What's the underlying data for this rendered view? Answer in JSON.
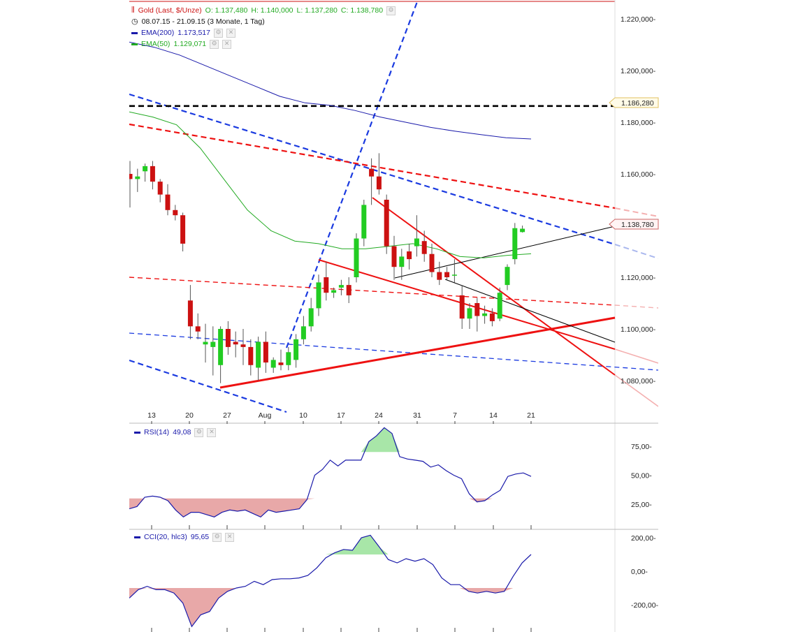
{
  "colors": {
    "up": "#22cc22",
    "down": "#cc1111",
    "ema200": "#1a1aaa",
    "ema50": "#22aa22",
    "trend_red": "#ee1111",
    "trend_blue": "#1a3ae0",
    "black": "#000000",
    "grid_text": "#222222",
    "rsi_line": "#1a1aaa",
    "fill_green": "#a8e6a8",
    "fill_red": "#e8a8a8"
  },
  "header": {
    "instrument": "Gold (Last, $/Unze)",
    "open": "O: 1.137,480",
    "high": "H: 1.140,000",
    "low": "L: 1.137,280",
    "close": "C: 1.138,780",
    "range": "08.07.15 - 21.09.15 (3 Monate, 1 Tag)",
    "ema200_label": "EMA(200)",
    "ema200_value": "1.173,517",
    "ema50_label": "EMA(50)",
    "ema50_value": "1.129,071",
    "icon_candles": "candlestick-icon",
    "icon_clock": "clock-icon"
  },
  "rsi_legend": {
    "label": "RSI(14)",
    "value": "49,08"
  },
  "cci_legend": {
    "label": "CCI(20, hlc3)",
    "value": "95,65"
  },
  "price_markers": {
    "level_black": "1.186,280",
    "last_price": "1.138,780"
  },
  "chart_data": {
    "type": "candlestick",
    "x_tick_labels": [
      "13",
      "20",
      "27",
      "Aug",
      "10",
      "17",
      "24",
      "31",
      "7",
      "14",
      "21"
    ],
    "price_axis": {
      "ylim": [
        1075000,
        1225000
      ],
      "ticks": [
        1220000,
        1200000,
        1180000,
        1160000,
        1120000,
        1100000,
        1080000
      ],
      "tick_labels": [
        "1.220,000-",
        "1.200,000-",
        "1.180,000-",
        "1.160,000-",
        "1.120,000-",
        "1.100,000-",
        "1.080,000-"
      ]
    },
    "candles": [
      {
        "o": 1160000,
        "h": 1165000,
        "l": 1147000,
        "c": 1158000
      },
      {
        "o": 1158000,
        "h": 1162000,
        "l": 1153000,
        "c": 1159000
      },
      {
        "o": 1161000,
        "h": 1164000,
        "l": 1157000,
        "c": 1163000
      },
      {
        "o": 1163000,
        "h": 1165000,
        "l": 1154000,
        "c": 1157000
      },
      {
        "o": 1157000,
        "h": 1158000,
        "l": 1149000,
        "c": 1152000
      },
      {
        "o": 1152000,
        "h": 1156000,
        "l": 1144000,
        "c": 1146000
      },
      {
        "o": 1146000,
        "h": 1148000,
        "l": 1142000,
        "c": 1144000
      },
      {
        "o": 1144000,
        "h": 1145000,
        "l": 1130000,
        "c": 1133000
      },
      {
        "o": 1111000,
        "h": 1117000,
        "l": 1096000,
        "c": 1101000
      },
      {
        "o": 1101000,
        "h": 1106000,
        "l": 1096000,
        "c": 1099000
      },
      {
        "o": 1094000,
        "h": 1102000,
        "l": 1087000,
        "c": 1095000
      },
      {
        "o": 1093000,
        "h": 1101000,
        "l": 1082000,
        "c": 1095000
      },
      {
        "o": 1086000,
        "h": 1101000,
        "l": 1079000,
        "c": 1100000
      },
      {
        "o": 1100000,
        "h": 1103000,
        "l": 1090000,
        "c": 1093000
      },
      {
        "o": 1095000,
        "h": 1099000,
        "l": 1089000,
        "c": 1094000
      },
      {
        "o": 1094000,
        "h": 1100000,
        "l": 1086000,
        "c": 1093000
      },
      {
        "o": 1093000,
        "h": 1096000,
        "l": 1082000,
        "c": 1086000
      },
      {
        "o": 1085000,
        "h": 1097000,
        "l": 1080000,
        "c": 1095000
      },
      {
        "o": 1095000,
        "h": 1099000,
        "l": 1083000,
        "c": 1087000
      },
      {
        "o": 1085000,
        "h": 1089000,
        "l": 1083000,
        "c": 1088000
      },
      {
        "o": 1087000,
        "h": 1092000,
        "l": 1084000,
        "c": 1086000
      },
      {
        "o": 1086000,
        "h": 1093000,
        "l": 1084000,
        "c": 1091000
      },
      {
        "o": 1088000,
        "h": 1098000,
        "l": 1085000,
        "c": 1096000
      },
      {
        "o": 1096000,
        "h": 1105000,
        "l": 1094000,
        "c": 1101000
      },
      {
        "o": 1101000,
        "h": 1112000,
        "l": 1099000,
        "c": 1108000
      },
      {
        "o": 1108000,
        "h": 1121000,
        "l": 1105000,
        "c": 1118000
      },
      {
        "o": 1120000,
        "h": 1126000,
        "l": 1111000,
        "c": 1114000
      },
      {
        "o": 1114000,
        "h": 1116000,
        "l": 1112000,
        "c": 1115000
      },
      {
        "o": 1116000,
        "h": 1119000,
        "l": 1113000,
        "c": 1117000
      },
      {
        "o": 1117000,
        "h": 1120000,
        "l": 1110000,
        "c": 1113000
      },
      {
        "o": 1120000,
        "h": 1137000,
        "l": 1118000,
        "c": 1135000
      },
      {
        "o": 1135000,
        "h": 1150000,
        "l": 1132000,
        "c": 1148000
      },
      {
        "o": 1162000,
        "h": 1166000,
        "l": 1148000,
        "c": 1159000
      },
      {
        "o": 1159000,
        "h": 1168000,
        "l": 1152000,
        "c": 1154000
      },
      {
        "o": 1150000,
        "h": 1152000,
        "l": 1129000,
        "c": 1132000
      },
      {
        "o": 1132000,
        "h": 1136000,
        "l": 1119000,
        "c": 1124000
      },
      {
        "o": 1124000,
        "h": 1131000,
        "l": 1119000,
        "c": 1128000
      },
      {
        "o": 1130000,
        "h": 1133000,
        "l": 1123000,
        "c": 1127000
      },
      {
        "o": 1132000,
        "h": 1144000,
        "l": 1128000,
        "c": 1135000
      },
      {
        "o": 1134000,
        "h": 1138000,
        "l": 1126000,
        "c": 1129000
      },
      {
        "o": 1129000,
        "h": 1133000,
        "l": 1120000,
        "c": 1122000
      },
      {
        "o": 1122000,
        "h": 1126000,
        "l": 1117000,
        "c": 1119000
      },
      {
        "o": 1122000,
        "h": 1124000,
        "l": 1119000,
        "c": 1120000
      },
      {
        "o": 1121000,
        "h": 1127000,
        "l": 1118000,
        "c": 1121000
      },
      {
        "o": 1113000,
        "h": 1117000,
        "l": 1100000,
        "c": 1104000
      },
      {
        "o": 1104000,
        "h": 1110000,
        "l": 1100000,
        "c": 1108000
      },
      {
        "o": 1110000,
        "h": 1112000,
        "l": 1099000,
        "c": 1105000
      },
      {
        "o": 1105000,
        "h": 1109000,
        "l": 1102000,
        "c": 1106000
      },
      {
        "o": 1106000,
        "h": 1108000,
        "l": 1101000,
        "c": 1103000
      },
      {
        "o": 1104000,
        "h": 1116000,
        "l": 1103000,
        "c": 1114000
      },
      {
        "o": 1117000,
        "h": 1125000,
        "l": 1115000,
        "c": 1124000
      },
      {
        "o": 1127000,
        "h": 1141000,
        "l": 1125000,
        "c": 1139000
      },
      {
        "o": 1137480,
        "h": 1140000,
        "l": 1137280,
        "c": 1138780
      }
    ],
    "ema200": [
      1211000,
      1209000,
      1206000,
      1202000,
      1198000,
      1194000,
      1190000,
      1187500,
      1186500,
      1184500,
      1182000,
      1180000,
      1178000,
      1176500,
      1175200,
      1174000,
      1173517
    ],
    "ema50": [
      1184000,
      1182000,
      1179000,
      1170000,
      1158000,
      1146000,
      1138000,
      1134000,
      1133000,
      1131000,
      1131000,
      1132000,
      1133000,
      1131000,
      1128000,
      1127500,
      1128500,
      1129071
    ],
    "horizontal_level": 1186280,
    "rsi": {
      "label": "RSI(14)",
      "tick_labels": [
        "75,00-",
        "50,00-",
        "25,00-"
      ],
      "ticks": [
        75,
        50,
        25
      ],
      "ylim": [
        0,
        100
      ],
      "upper": 70,
      "lower": 30,
      "values": [
        21,
        23,
        31,
        32,
        31,
        28,
        20,
        14,
        18,
        18,
        16,
        14,
        18,
        20,
        19,
        20,
        17,
        14,
        20,
        18,
        19,
        20,
        21,
        29,
        50,
        55,
        63,
        58,
        63,
        63,
        63,
        79,
        84,
        91,
        86,
        66,
        64,
        63,
        62,
        57,
        59,
        54,
        50,
        47,
        34,
        27,
        28,
        33,
        37,
        49,
        51,
        52,
        49
      ]
    },
    "cci": {
      "label": "CCI(20, hlc3)",
      "tick_labels": [
        "200,00-",
        "0,00-",
        "-200,00-"
      ],
      "ticks": [
        200,
        0,
        -200
      ],
      "ylim": [
        -350,
        250
      ],
      "upper": 100,
      "lower": -100,
      "values": [
        -160,
        -110,
        -90,
        -110,
        -110,
        -130,
        -190,
        -330,
        -260,
        -240,
        -160,
        -120,
        -100,
        -90,
        -60,
        -80,
        -50,
        -45,
        -45,
        -40,
        -25,
        20,
        80,
        110,
        130,
        125,
        200,
        215,
        145,
        70,
        50,
        75,
        60,
        75,
        40,
        -40,
        -80,
        -80,
        -120,
        -130,
        -120,
        -130,
        -120,
        -30,
        50,
        100
      ]
    }
  }
}
